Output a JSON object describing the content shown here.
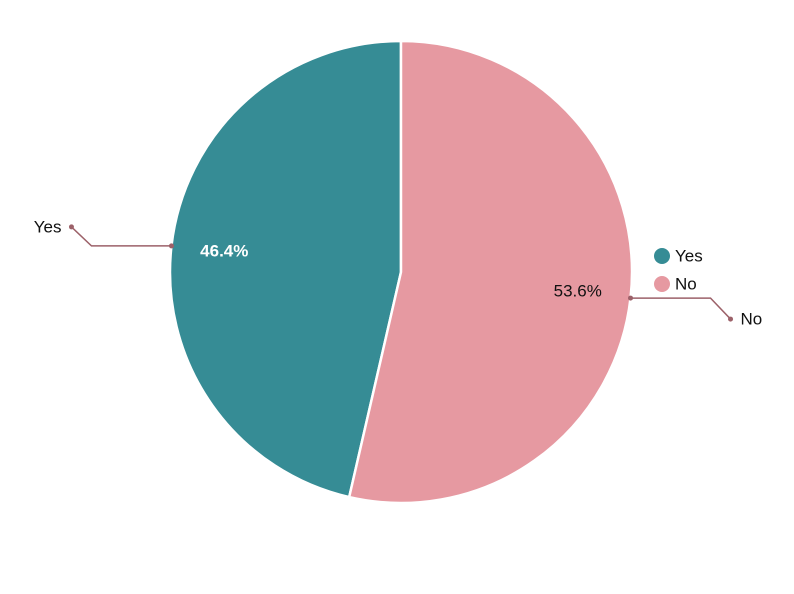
{
  "chart_data": {
    "type": "pie",
    "categories": [
      "Yes",
      "No"
    ],
    "values": [
      46.4,
      53.6
    ],
    "value_labels": [
      "46.4%",
      "53.6%"
    ],
    "colors": [
      "#368c95",
      "#e699a1"
    ],
    "legend": "right"
  }
}
